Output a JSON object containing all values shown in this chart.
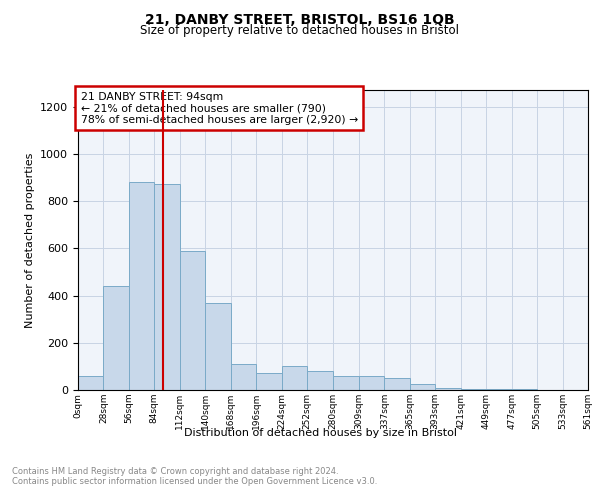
{
  "title_line1": "21, DANBY STREET, BRISTOL, BS16 1QB",
  "title_line2": "Size of property relative to detached houses in Bristol",
  "xlabel": "Distribution of detached houses by size in Bristol",
  "ylabel": "Number of detached properties",
  "bar_color": "#c8d8ea",
  "bar_edge_color": "#7aaac8",
  "bar_edge_width": 0.7,
  "grid_color": "#c8d4e4",
  "background_color": "#f0f4fa",
  "annotation_box_color": "#cc0000",
  "property_line_color": "#cc0000",
  "property_line_x": 94,
  "annotation_title": "21 DANBY STREET: 94sqm",
  "annotation_line1": "← 21% of detached houses are smaller (790)",
  "annotation_line2": "78% of semi-detached houses are larger (2,920) →",
  "footnote1": "Contains HM Land Registry data © Crown copyright and database right 2024.",
  "footnote2": "Contains public sector information licensed under the Open Government Licence v3.0.",
  "bin_edges": [
    0,
    28,
    56,
    84,
    112,
    140,
    168,
    196,
    224,
    252,
    280,
    309,
    337,
    365,
    393,
    421,
    449,
    477,
    505,
    533,
    561
  ],
  "bar_heights": [
    60,
    440,
    880,
    870,
    590,
    370,
    110,
    70,
    100,
    80,
    60,
    60,
    50,
    25,
    10,
    5,
    5,
    3,
    2,
    1
  ],
  "ylim": [
    0,
    1270
  ],
  "yticks": [
    0,
    200,
    400,
    600,
    800,
    1000,
    1200
  ],
  "tick_labels": [
    "0sqm",
    "28sqm",
    "56sqm",
    "84sqm",
    "112sqm",
    "140sqm",
    "168sqm",
    "196sqm",
    "224sqm",
    "252sqm",
    "280sqm",
    "309sqm",
    "337sqm",
    "365sqm",
    "393sqm",
    "421sqm",
    "449sqm",
    "477sqm",
    "505sqm",
    "533sqm",
    "561sqm"
  ]
}
